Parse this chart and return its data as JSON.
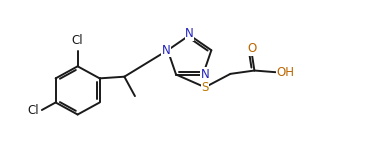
{
  "bg_color": "#ffffff",
  "bond_color": "#1a1a1a",
  "atom_colors": {
    "N": "#2222bb",
    "O": "#bb6600",
    "S": "#bb7700",
    "Cl": "#1a1a1a",
    "C": "#1a1a1a",
    "H": "#1a1a1a"
  },
  "line_width": 1.4,
  "font_size": 8.5,
  "xlim": [
    0,
    10.5
  ],
  "ylim": [
    0,
    4.2
  ]
}
